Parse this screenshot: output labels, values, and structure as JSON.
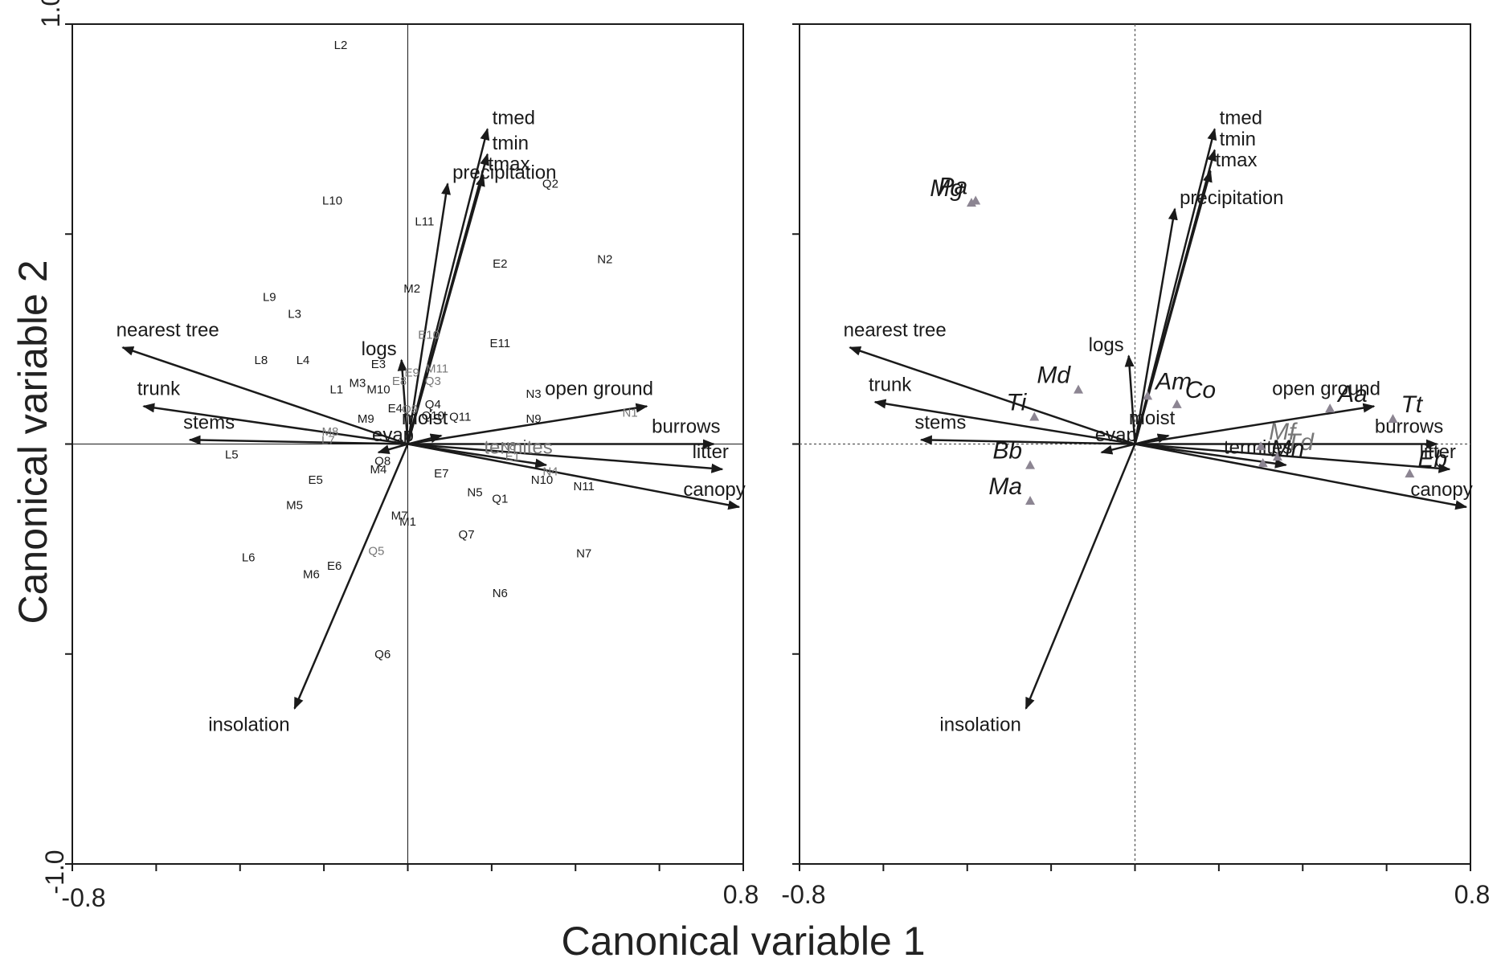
{
  "axes": {
    "xlabel": "Canonical variable 1",
    "ylabel": "Canonical variable 2",
    "xlim": [
      -0.8,
      0.8
    ],
    "ylim": [
      -1.0,
      1.0
    ],
    "x_tick_labels": [
      "-0.8",
      "0.8"
    ],
    "y_tick_labels": [
      "1.0",
      "-1.0"
    ]
  },
  "colors": {
    "arrow": "#1a1a1a",
    "grey_text": "#777777",
    "marker": "#8c8592"
  },
  "chart_data": [
    {
      "type": "scatter",
      "panel": "sites",
      "grid": false,
      "vectors": [
        {
          "label": "tmed",
          "x": 0.19,
          "y": 0.75
        },
        {
          "label": "tmin",
          "x": 0.19,
          "y": 0.69
        },
        {
          "label": "tmax",
          "x": 0.18,
          "y": 0.64
        },
        {
          "label": "precipitation",
          "x": 0.095,
          "y": 0.62
        },
        {
          "label": "nearest tree",
          "x": -0.68,
          "y": 0.23
        },
        {
          "label": "trunk",
          "x": -0.63,
          "y": 0.09
        },
        {
          "label": "stems",
          "x": -0.52,
          "y": 0.01
        },
        {
          "label": "logs",
          "x": -0.015,
          "y": 0.2
        },
        {
          "label": "open ground",
          "x": 0.57,
          "y": 0.09
        },
        {
          "label": "burrows",
          "x": 0.73,
          "y": 0.0
        },
        {
          "label": "litter",
          "x": 0.75,
          "y": -0.06
        },
        {
          "label": "canopy",
          "x": 0.79,
          "y": -0.15
        },
        {
          "label": "moist",
          "x": 0.08,
          "y": 0.02
        },
        {
          "label": "evap",
          "x": -0.07,
          "y": -0.02
        },
        {
          "label": "termites",
          "x": 0.33,
          "y": -0.05,
          "grey": true
        },
        {
          "label": "insolation",
          "x": -0.27,
          "y": -0.63
        }
      ],
      "points": [
        {
          "label": "L2",
          "x": -0.16,
          "y": 0.95
        },
        {
          "label": "L10",
          "x": -0.18,
          "y": 0.58
        },
        {
          "label": "Q2",
          "x": 0.34,
          "y": 0.62
        },
        {
          "label": "L11",
          "x": 0.04,
          "y": 0.53
        },
        {
          "label": "E2",
          "x": 0.22,
          "y": 0.43
        },
        {
          "label": "N2",
          "x": 0.47,
          "y": 0.44
        },
        {
          "label": "M2",
          "x": 0.01,
          "y": 0.37
        },
        {
          "label": "L9",
          "x": -0.33,
          "y": 0.35
        },
        {
          "label": "L3",
          "x": -0.27,
          "y": 0.31
        },
        {
          "label": "E10",
          "x": 0.05,
          "y": 0.26,
          "grey": true
        },
        {
          "label": "E11",
          "x": 0.22,
          "y": 0.24
        },
        {
          "label": "L8",
          "x": -0.35,
          "y": 0.2
        },
        {
          "label": "L4",
          "x": -0.25,
          "y": 0.2
        },
        {
          "label": "E3",
          "x": -0.07,
          "y": 0.19
        },
        {
          "label": "M11",
          "x": 0.07,
          "y": 0.18,
          "grey": true
        },
        {
          "label": "E9",
          "x": 0.01,
          "y": 0.17,
          "grey": true
        },
        {
          "label": "E8",
          "x": -0.02,
          "y": 0.15,
          "grey": true
        },
        {
          "label": "Q3",
          "x": 0.06,
          "y": 0.15,
          "grey": true
        },
        {
          "label": "M3",
          "x": -0.12,
          "y": 0.145
        },
        {
          "label": "L1",
          "x": -0.17,
          "y": 0.13
        },
        {
          "label": "M10",
          "x": -0.07,
          "y": 0.13
        },
        {
          "label": "N3",
          "x": 0.3,
          "y": 0.12
        },
        {
          "label": "Q4",
          "x": 0.06,
          "y": 0.095
        },
        {
          "label": "E4",
          "x": -0.03,
          "y": 0.085
        },
        {
          "label": "Q9",
          "x": 0.005,
          "y": 0.083,
          "grey": true
        },
        {
          "label": "N1",
          "x": 0.53,
          "y": 0.075,
          "grey": true
        },
        {
          "label": "M9",
          "x": -0.1,
          "y": 0.06
        },
        {
          "label": "Q10",
          "x": 0.06,
          "y": 0.068
        },
        {
          "label": "Q11",
          "x": 0.125,
          "y": 0.065
        },
        {
          "label": "N9",
          "x": 0.3,
          "y": 0.06
        },
        {
          "label": "M8",
          "x": -0.185,
          "y": 0.03,
          "grey": true
        },
        {
          "label": "L7",
          "x": -0.19,
          "y": 0.01,
          "grey": true
        },
        {
          "label": "N8",
          "x": 0.24,
          "y": -0.005,
          "grey": true
        },
        {
          "label": "L5",
          "x": -0.42,
          "y": -0.025
        },
        {
          "label": "Q8",
          "x": -0.06,
          "y": -0.04
        },
        {
          "label": "E1",
          "x": 0.25,
          "y": -0.03,
          "grey": true
        },
        {
          "label": "M4",
          "x": -0.07,
          "y": -0.06
        },
        {
          "label": "N4",
          "x": 0.34,
          "y": -0.065,
          "grey": true
        },
        {
          "label": "E7",
          "x": 0.08,
          "y": -0.07
        },
        {
          "label": "N10",
          "x": 0.32,
          "y": -0.085
        },
        {
          "label": "E5",
          "x": -0.22,
          "y": -0.085
        },
        {
          "label": "N11",
          "x": 0.42,
          "y": -0.1
        },
        {
          "label": "N5",
          "x": 0.16,
          "y": -0.115
        },
        {
          "label": "Q1",
          "x": 0.22,
          "y": -0.13
        },
        {
          "label": "M5",
          "x": -0.27,
          "y": -0.145
        },
        {
          "label": "M7",
          "x": -0.02,
          "y": -0.17
        },
        {
          "label": "M1",
          "x": 0.0,
          "y": -0.185
        },
        {
          "label": "Q7",
          "x": 0.14,
          "y": -0.215
        },
        {
          "label": "Q5",
          "x": -0.075,
          "y": -0.255,
          "grey": true
        },
        {
          "label": "N7",
          "x": 0.42,
          "y": -0.26
        },
        {
          "label": "L6",
          "x": -0.38,
          "y": -0.27
        },
        {
          "label": "E6",
          "x": -0.175,
          "y": -0.29
        },
        {
          "label": "M6",
          "x": -0.23,
          "y": -0.31
        },
        {
          "label": "N6",
          "x": 0.22,
          "y": -0.355
        },
        {
          "label": "Q6",
          "x": -0.06,
          "y": -0.5
        }
      ]
    },
    {
      "type": "scatter",
      "panel": "species",
      "grid": false,
      "vectors": [
        {
          "label": "tmed",
          "x": 0.19,
          "y": 0.75
        },
        {
          "label": "tmin",
          "x": 0.19,
          "y": 0.7
        },
        {
          "label": "tmax",
          "x": 0.18,
          "y": 0.65
        },
        {
          "label": "precipitation",
          "x": 0.095,
          "y": 0.56
        },
        {
          "label": "nearest tree",
          "x": -0.68,
          "y": 0.23
        },
        {
          "label": "trunk",
          "x": -0.62,
          "y": 0.1
        },
        {
          "label": "stems",
          "x": -0.51,
          "y": 0.01
        },
        {
          "label": "logs",
          "x": -0.015,
          "y": 0.21
        },
        {
          "label": "open ground",
          "x": 0.57,
          "y": 0.09
        },
        {
          "label": "burrows",
          "x": 0.72,
          "y": 0.0
        },
        {
          "label": "litter",
          "x": 0.75,
          "y": -0.06
        },
        {
          "label": "canopy",
          "x": 0.79,
          "y": -0.15
        },
        {
          "label": "moist",
          "x": 0.08,
          "y": 0.02
        },
        {
          "label": "evap",
          "x": -0.08,
          "y": -0.02
        },
        {
          "label": "termites",
          "x": 0.36,
          "y": -0.05
        },
        {
          "label": "insolation",
          "x": -0.26,
          "y": -0.63
        }
      ],
      "points": [
        {
          "label": "Pa",
          "x": -0.38,
          "y": 0.58
        },
        {
          "label": "Mg",
          "x": -0.39,
          "y": 0.575
        },
        {
          "label": "Md",
          "x": -0.135,
          "y": 0.13
        },
        {
          "label": "Ti",
          "x": -0.24,
          "y": 0.065
        },
        {
          "label": "Am",
          "x": 0.03,
          "y": 0.115
        },
        {
          "label": "Co",
          "x": 0.1,
          "y": 0.095
        },
        {
          "label": "Aa",
          "x": 0.465,
          "y": 0.085
        },
        {
          "label": "Tt",
          "x": 0.615,
          "y": 0.06
        },
        {
          "label": "Mf",
          "x": 0.3,
          "y": -0.005,
          "grey": true
        },
        {
          "label": "Td",
          "x": 0.34,
          "y": -0.03,
          "grey": true
        },
        {
          "label": "Mn",
          "x": 0.305,
          "y": -0.045
        },
        {
          "label": "Eb",
          "x": 0.655,
          "y": -0.07
        },
        {
          "label": "Bb",
          "x": -0.25,
          "y": -0.05
        },
        {
          "label": "Ma",
          "x": -0.25,
          "y": -0.135
        }
      ]
    }
  ]
}
